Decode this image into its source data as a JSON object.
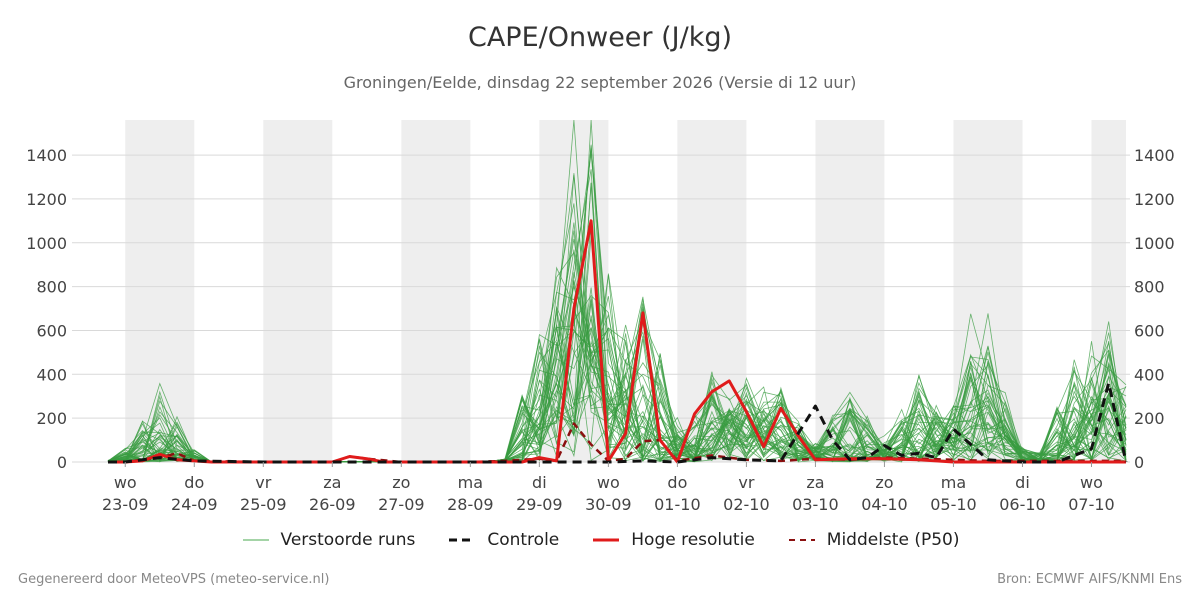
{
  "header": {
    "title": "CAPE/Onweer (J/kg)",
    "subtitle": "Groningen/Eelde, dinsdag 22 september 2026 (Versie di 12 uur)"
  },
  "footer": {
    "left": "Gegenereerd door MeteoVPS (meteo-service.nl)",
    "right": "Bron: ECMWF AIFS/KNMI Ens"
  },
  "legend": [
    {
      "label": "Verstoorde runs",
      "color": "#4aa84f",
      "style": "thin"
    },
    {
      "label": "Controle",
      "color": "#111111",
      "style": "dashed"
    },
    {
      "label": "Hoge resolutie",
      "color": "#e01b1b",
      "style": "solid"
    },
    {
      "label": "Middelste (P50)",
      "color": "#8b1010",
      "style": "dashed"
    }
  ],
  "chart_data": {
    "type": "line",
    "title": "CAPE/Onweer (J/kg)",
    "ylabel": "",
    "xlabel": "",
    "ylim": [
      0,
      1560
    ],
    "xlim": [
      -0.25,
      14.5
    ],
    "yticks": [
      0,
      200,
      400,
      600,
      800,
      1000,
      1200,
      1400
    ],
    "grid": true,
    "shaded_days": [
      0,
      2,
      4,
      6,
      8,
      10,
      12,
      14
    ],
    "x_tick_days": [
      0,
      1,
      2,
      3,
      4,
      5,
      6,
      7,
      8,
      9,
      10,
      11,
      12,
      13,
      14
    ],
    "x_tick_weekdays": [
      "wo",
      "do",
      "vr",
      "za",
      "zo",
      "ma",
      "di",
      "wo",
      "do",
      "vr",
      "za",
      "zo",
      "ma",
      "di",
      "wo"
    ],
    "x_tick_dates": [
      "23-09",
      "24-09",
      "25-09",
      "26-09",
      "27-09",
      "28-09",
      "29-09",
      "30-09",
      "01-10",
      "02-10",
      "03-10",
      "04-10",
      "05-10",
      "06-10",
      "07-10"
    ],
    "x_unit": "days since 23-09 00:00",
    "series": [
      {
        "name": "Hoge resolutie",
        "color": "#e01b1b",
        "x": [
          -0.25,
          0,
          0.25,
          0.5,
          0.75,
          1,
          1.25,
          1.5,
          1.75,
          2,
          2.5,
          3,
          3.25,
          3.5,
          3.75,
          4,
          4.5,
          5,
          5.5,
          5.75,
          6,
          6.25,
          6.5,
          6.75,
          7,
          7.25,
          7.5,
          7.75,
          8,
          8.25,
          8.5,
          8.75,
          9,
          9.25,
          9.5,
          9.75,
          10,
          10.5,
          11,
          11.5,
          12,
          12.5,
          13,
          13.5,
          14,
          14.5
        ],
        "values": [
          0,
          0,
          5,
          35,
          10,
          5,
          0,
          0,
          0,
          0,
          0,
          0,
          25,
          15,
          0,
          0,
          0,
          0,
          0,
          0,
          20,
          5,
          700,
          1100,
          5,
          130,
          680,
          100,
          0,
          220,
          320,
          370,
          230,
          70,
          245,
          120,
          10,
          15,
          15,
          10,
          0,
          0,
          0,
          0,
          0,
          0
        ]
      },
      {
        "name": "Controle",
        "color": "#111111",
        "x": [
          -0.25,
          0,
          0.5,
          1,
          2,
          3,
          4,
          5,
          6,
          7,
          7.5,
          8,
          8.5,
          9,
          9.5,
          10,
          10.25,
          10.5,
          10.75,
          11,
          11.25,
          11.5,
          11.75,
          12,
          12.5,
          13,
          13.5,
          13.75,
          14,
          14.25,
          14.5
        ],
        "values": [
          0,
          0,
          20,
          5,
          0,
          0,
          0,
          0,
          0,
          0,
          5,
          0,
          20,
          10,
          5,
          255,
          100,
          10,
          20,
          75,
          30,
          40,
          20,
          150,
          10,
          0,
          0,
          30,
          60,
          360,
          0
        ]
      },
      {
        "name": "Middelste (P50)",
        "color": "#8b1010",
        "x": [
          -0.25,
          0,
          0.5,
          0.75,
          1,
          2,
          3,
          3.25,
          3.5,
          4,
          5,
          5.5,
          6,
          6.25,
          6.5,
          6.75,
          7,
          7.25,
          7.5,
          7.75,
          8,
          8.5,
          9,
          9.5,
          10,
          10.5,
          11,
          11.5,
          12,
          12.5,
          13,
          13.5,
          14,
          14.5
        ],
        "values": [
          0,
          0,
          20,
          40,
          5,
          0,
          0,
          25,
          15,
          0,
          0,
          5,
          15,
          5,
          175,
          80,
          5,
          15,
          95,
          100,
          5,
          30,
          10,
          5,
          15,
          10,
          20,
          15,
          10,
          5,
          5,
          5,
          5,
          5
        ]
      }
    ]
  }
}
